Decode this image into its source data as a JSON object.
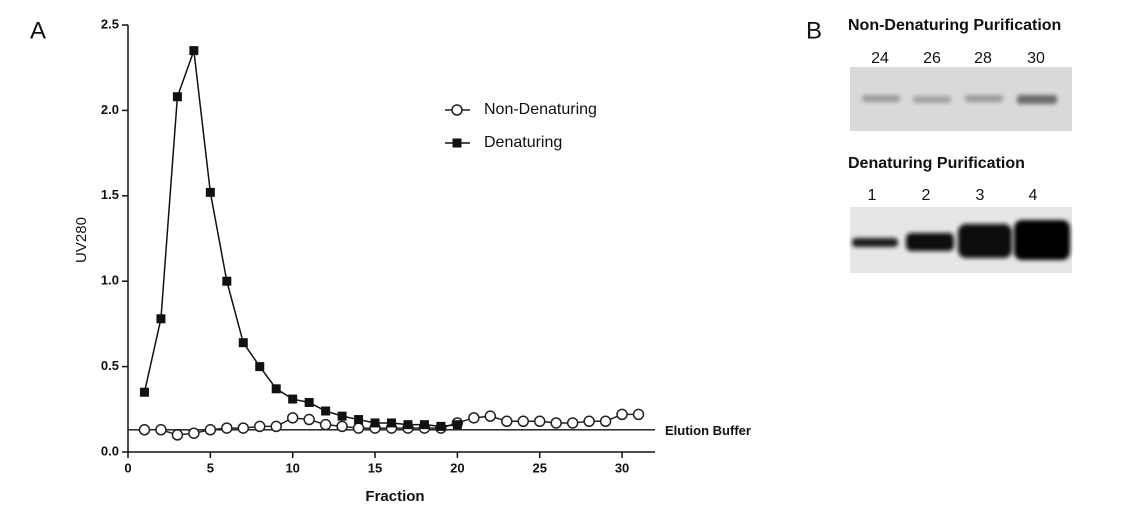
{
  "chart_data": {
    "type": "line",
    "panel_label": "A",
    "x_label": "Fraction",
    "y_label": "UV280",
    "xlim": [
      0,
      32
    ],
    "xticks": [
      0,
      5,
      10,
      15,
      20,
      25,
      30
    ],
    "ylim": [
      0,
      2.5
    ],
    "yticks": [
      {
        "value": 0,
        "label": "0.0"
      },
      0.5,
      {
        "value": 1,
        "label": "1.0"
      },
      1.5,
      {
        "value": 2,
        "label": "2.0"
      },
      2.5
    ],
    "reference_line": {
      "label": "Elution Buffer",
      "value": 0.13
    },
    "series": [
      {
        "name": "Non-Denaturing",
        "marker": "open-circle",
        "color": "#222222",
        "x": [
          1,
          2,
          3,
          4,
          5,
          6,
          7,
          8,
          9,
          10,
          11,
          12,
          13,
          14,
          15,
          16,
          17,
          18,
          19,
          20,
          21,
          22,
          23,
          24,
          25,
          26,
          27,
          28,
          29,
          30,
          31
        ],
        "values": [
          0.13,
          0.13,
          0.1,
          0.11,
          0.13,
          0.14,
          0.14,
          0.15,
          0.15,
          0.2,
          0.19,
          0.16,
          0.15,
          0.14,
          0.14,
          0.14,
          0.14,
          0.14,
          0.14,
          0.17,
          0.2,
          0.21,
          0.18,
          0.18,
          0.18,
          0.17,
          0.17,
          0.18,
          0.18,
          0.22,
          0.22
        ]
      },
      {
        "name": "Denaturing",
        "marker": "filled-square",
        "color": "#111111",
        "x": [
          1,
          2,
          3,
          4,
          5,
          6,
          7,
          8,
          9,
          10,
          11,
          12,
          13,
          14,
          15,
          16,
          17,
          18,
          19,
          20
        ],
        "values": [
          0.35,
          0.78,
          2.08,
          2.35,
          1.52,
          1.0,
          0.64,
          0.5,
          0.37,
          0.31,
          0.29,
          0.24,
          0.21,
          0.19,
          0.17,
          0.17,
          0.16,
          0.16,
          0.15,
          0.16
        ]
      }
    ]
  },
  "panel_b": {
    "label": "B",
    "gels": [
      {
        "title": "Non-Denaturing Purification",
        "lanes": [
          "24",
          "26",
          "28",
          "30"
        ]
      },
      {
        "title": "Denaturing Purification",
        "lanes": [
          "1",
          "2",
          "3",
          "4"
        ]
      }
    ]
  }
}
